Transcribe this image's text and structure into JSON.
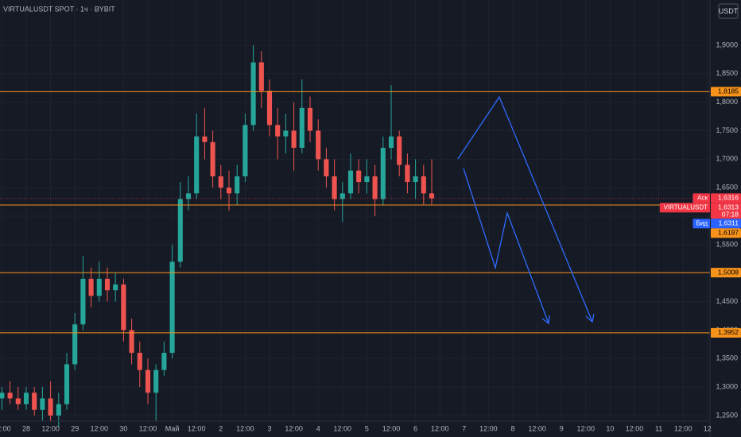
{
  "chart_data": {
    "type": "candlestick",
    "title": "VIRTUALUSDT SPOT · 1ч · BYBIT",
    "currency": "USDT",
    "x": [
      -12,
      -8,
      -4,
      0,
      4,
      8,
      12,
      16,
      20,
      24,
      28,
      32,
      36,
      40,
      44,
      48,
      52,
      56,
      60,
      64,
      68,
      72,
      76,
      80,
      84,
      88,
      92,
      96,
      100,
      104,
      108,
      112,
      116,
      120,
      124,
      128,
      132,
      136,
      140,
      144,
      148,
      152,
      156,
      160,
      164,
      168,
      172,
      176,
      180,
      184,
      188,
      192,
      196,
      200
    ],
    "series": [
      {
        "up_color": "#26a69a",
        "down_color": "#ef5350",
        "open": [
          1.28,
          1.29,
          1.28,
          1.27,
          1.29,
          1.26,
          1.28,
          1.25,
          1.27,
          1.34,
          1.41,
          1.49,
          1.46,
          1.49,
          1.47,
          1.48,
          1.4,
          1.36,
          1.33,
          1.29,
          1.33,
          1.36,
          1.52,
          1.63,
          1.64,
          1.74,
          1.73,
          1.67,
          1.65,
          1.64,
          1.67,
          1.76,
          1.87,
          1.82,
          1.76,
          1.74,
          1.75,
          1.72,
          1.79,
          1.75,
          1.7,
          1.67,
          1.63,
          1.64,
          1.68,
          1.66,
          1.67,
          1.63,
          1.72,
          1.74,
          1.69,
          1.66,
          1.67,
          1.64
        ],
        "high": [
          1.3,
          1.31,
          1.3,
          1.3,
          1.3,
          1.3,
          1.31,
          1.29,
          1.36,
          1.43,
          1.53,
          1.51,
          1.52,
          1.51,
          1.5,
          1.49,
          1.42,
          1.38,
          1.35,
          1.34,
          1.38,
          1.55,
          1.66,
          1.67,
          1.78,
          1.79,
          1.75,
          1.69,
          1.68,
          1.69,
          1.78,
          1.9,
          1.89,
          1.84,
          1.79,
          1.78,
          1.8,
          1.84,
          1.81,
          1.77,
          1.72,
          1.7,
          1.66,
          1.71,
          1.7,
          1.7,
          1.69,
          1.74,
          1.83,
          1.75,
          1.71,
          1.7,
          1.69,
          1.7
        ],
        "low": [
          1.26,
          1.27,
          1.26,
          1.26,
          1.25,
          1.24,
          1.24,
          1.23,
          1.26,
          1.33,
          1.4,
          1.44,
          1.45,
          1.45,
          1.45,
          1.38,
          1.34,
          1.3,
          1.27,
          1.24,
          1.32,
          1.35,
          1.51,
          1.61,
          1.63,
          1.7,
          1.65,
          1.63,
          1.61,
          1.62,
          1.66,
          1.75,
          1.79,
          1.74,
          1.7,
          1.71,
          1.68,
          1.71,
          1.73,
          1.68,
          1.65,
          1.61,
          1.59,
          1.63,
          1.64,
          1.64,
          1.6,
          1.62,
          1.7,
          1.67,
          1.64,
          1.63,
          1.62,
          1.62
        ],
        "close": [
          1.29,
          1.28,
          1.27,
          1.29,
          1.26,
          1.28,
          1.25,
          1.27,
          1.34,
          1.41,
          1.49,
          1.46,
          1.49,
          1.47,
          1.48,
          1.4,
          1.36,
          1.33,
          1.29,
          1.33,
          1.36,
          1.52,
          1.63,
          1.64,
          1.74,
          1.73,
          1.67,
          1.65,
          1.64,
          1.67,
          1.76,
          1.87,
          1.82,
          1.76,
          1.74,
          1.75,
          1.72,
          1.79,
          1.75,
          1.7,
          1.67,
          1.63,
          1.64,
          1.68,
          1.66,
          1.67,
          1.63,
          1.72,
          1.74,
          1.69,
          1.66,
          1.67,
          1.64,
          1.6313
        ]
      }
    ],
    "xlim": [
      -12.94,
      337.25
    ],
    "xticks": [
      {
        "value": -12,
        "label": "12:00"
      },
      {
        "value": 0,
        "label": "28"
      },
      {
        "value": 12,
        "label": "12:00"
      },
      {
        "value": 24,
        "label": "29"
      },
      {
        "value": 36,
        "label": "12:00"
      },
      {
        "value": 48,
        "label": "30"
      },
      {
        "value": 60,
        "label": "12:00"
      },
      {
        "value": 72,
        "label": "Май"
      },
      {
        "value": 84,
        "label": "12:00"
      },
      {
        "value": 96,
        "label": "2"
      },
      {
        "value": 108,
        "label": "12:00"
      },
      {
        "value": 120,
        "label": "3"
      },
      {
        "value": 132,
        "label": "12:00"
      },
      {
        "value": 144,
        "label": "4"
      },
      {
        "value": 156,
        "label": "12:00"
      },
      {
        "value": 168,
        "label": "5"
      },
      {
        "value": 180,
        "label": "12:00"
      },
      {
        "value": 192,
        "label": "6"
      },
      {
        "value": 204,
        "label": "12:00"
      },
      {
        "value": 216,
        "label": "7"
      },
      {
        "value": 228,
        "label": "12:00"
      },
      {
        "value": 240,
        "label": "8"
      },
      {
        "value": 252,
        "label": "12:00"
      },
      {
        "value": 264,
        "label": "9"
      },
      {
        "value": 276,
        "label": "12:00"
      },
      {
        "value": 288,
        "label": "10"
      },
      {
        "value": 300,
        "label": "12:00"
      },
      {
        "value": 312,
        "label": "11"
      },
      {
        "value": 324,
        "label": "12:00"
      },
      {
        "value": 336,
        "label": "12"
      }
    ],
    "ylim": [
      1.2402,
      1.9795
    ],
    "yticks": [
      {
        "value": 1.25,
        "label": "1,2500"
      },
      {
        "value": 1.3,
        "label": "1,3000"
      },
      {
        "value": 1.35,
        "label": "1,3500"
      },
      {
        "value": 1.4,
        "label": "1,4000"
      },
      {
        "value": 1.45,
        "label": "1,4500"
      },
      {
        "value": 1.5,
        "label": "1,5000"
      },
      {
        "value": 1.55,
        "label": "1,5500"
      },
      {
        "value": 1.6,
        "label": "1,6000"
      },
      {
        "value": 1.65,
        "label": "1,6500"
      },
      {
        "value": 1.7,
        "label": "1,7000"
      },
      {
        "value": 1.75,
        "label": "1,7500"
      },
      {
        "value": 1.8,
        "label": "1,8000"
      },
      {
        "value": 1.85,
        "label": "1,8500"
      },
      {
        "value": 1.9,
        "label": "1,9000"
      }
    ],
    "grid": true,
    "levels": [
      {
        "value": 1.8185,
        "label": "1,8185",
        "color": "#f7931a"
      },
      {
        "value": 1.6197,
        "label": "1,6197",
        "color": "#f7931a"
      },
      {
        "value": 1.5008,
        "label": "1,5008",
        "color": "#f7931a"
      },
      {
        "value": 1.3952,
        "label": "1,3952",
        "color": "#f7931a"
      }
    ],
    "price_labels": [
      {
        "name": "Аск",
        "value": 1.6316,
        "value_label": "1,6316",
        "color": "#f23645"
      },
      {
        "name": "VIRTUALUSDT",
        "value": 1.6313,
        "value_label": "1,6313",
        "color": "#f23645",
        "countdown": "07:18"
      },
      {
        "name": "Бид",
        "value": 1.6311,
        "value_label": "1,6311",
        "color": "#2962ff"
      }
    ]
  }
}
